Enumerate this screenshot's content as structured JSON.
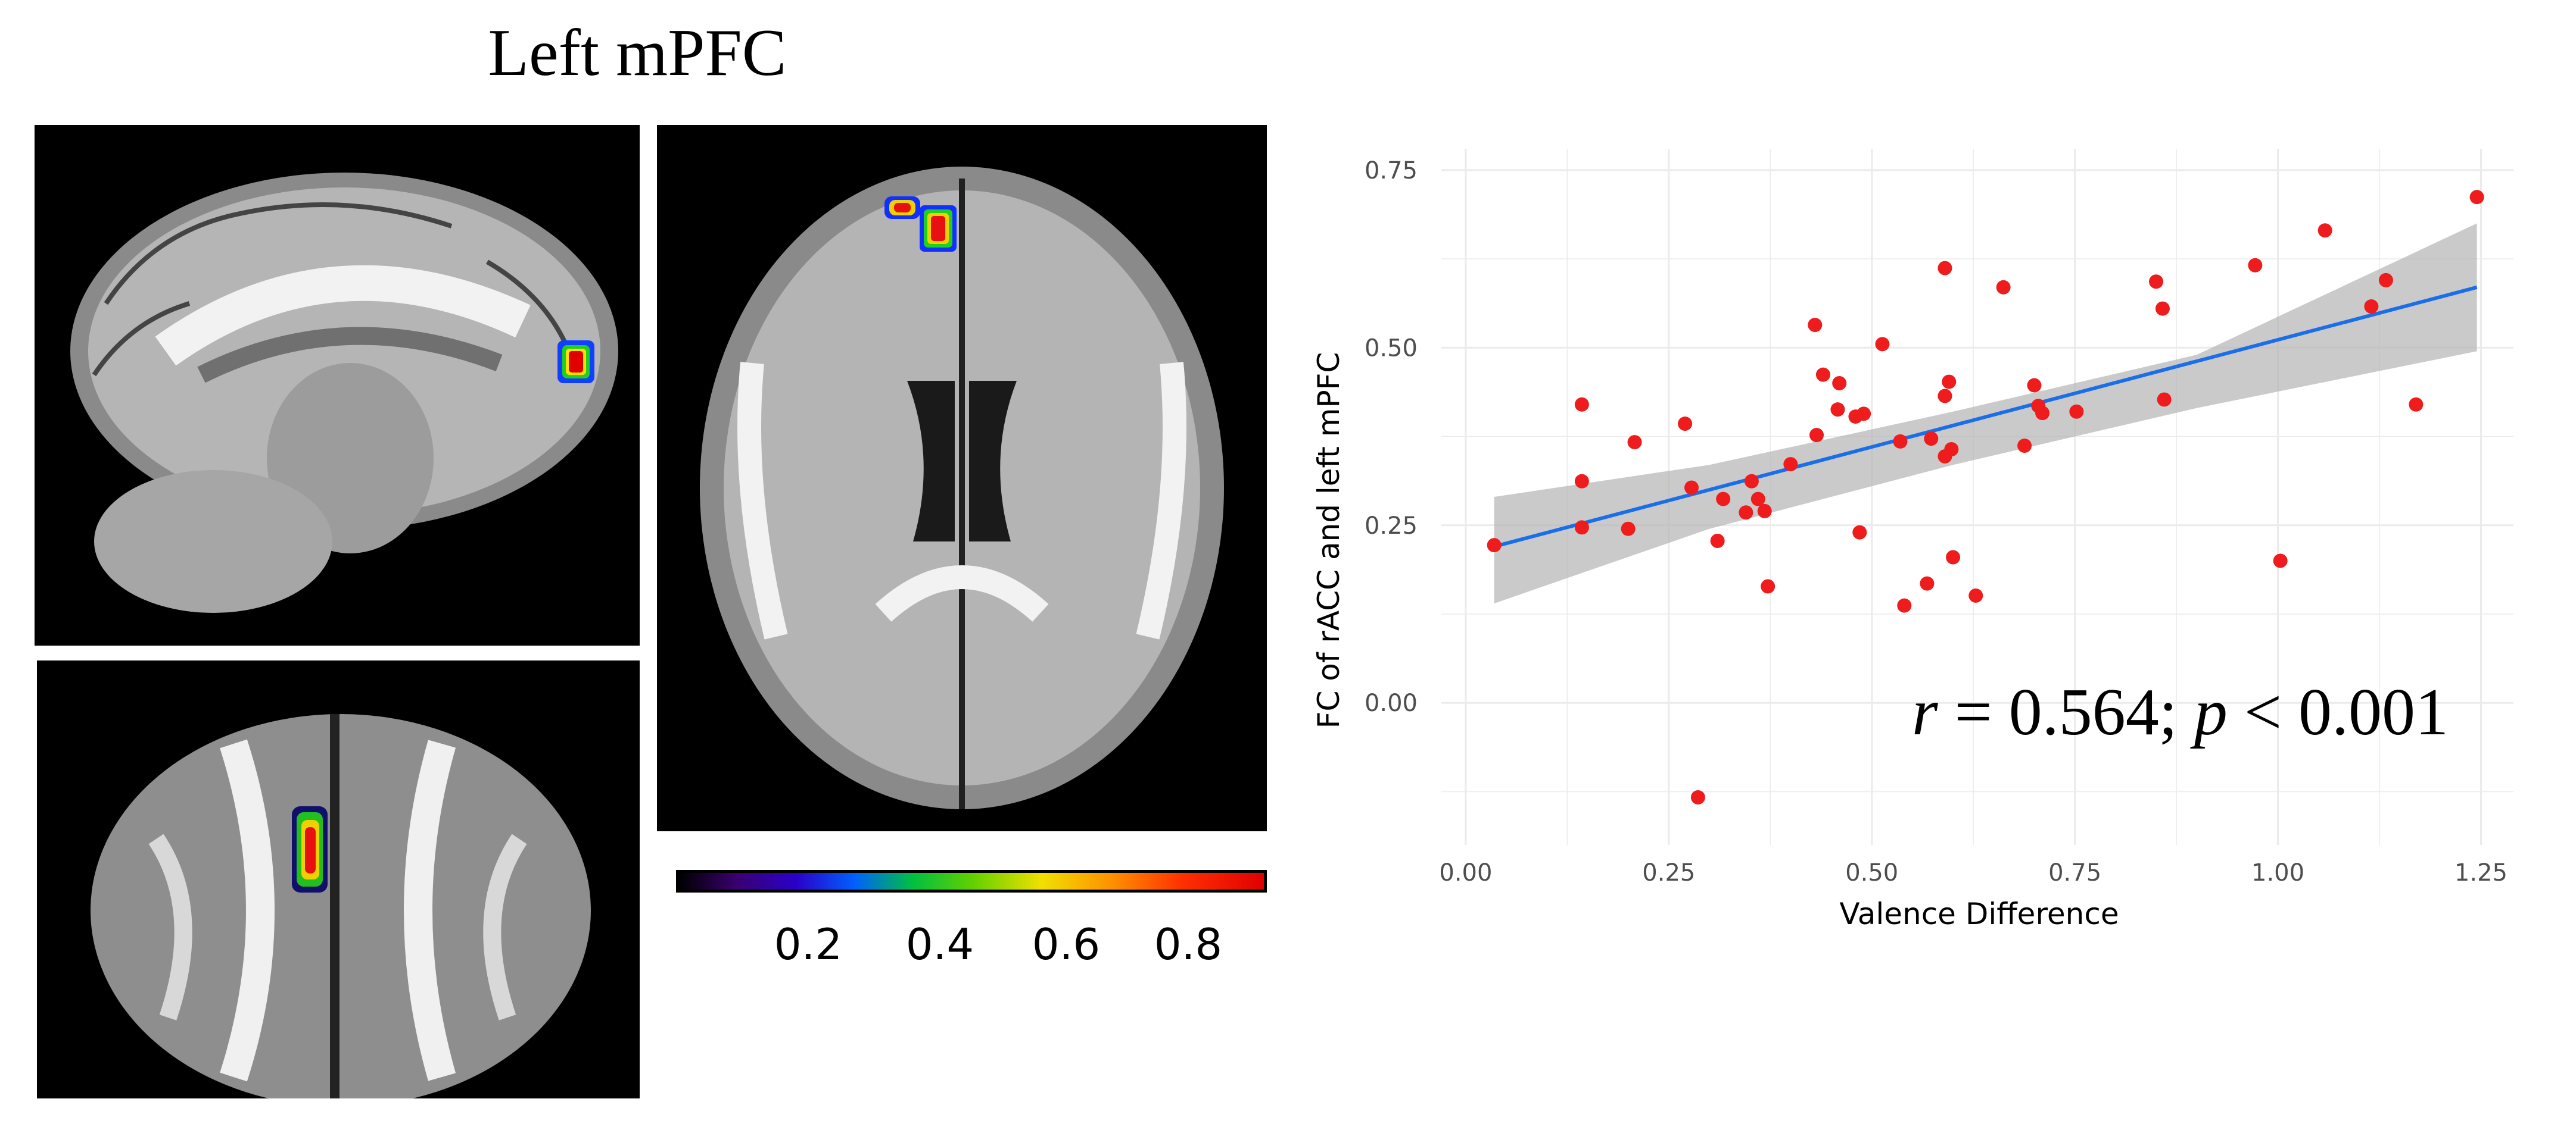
{
  "brain_figure": {
    "title": "Left mPFC",
    "colorbar_ticks": [
      "0.2",
      "0.4",
      "0.6",
      "0.8"
    ]
  },
  "chart_data": {
    "type": "scatter",
    "title": "",
    "xlabel": "Valence Difference",
    "ylabel": "FC of rACC and left mPFC",
    "xlim": [
      -0.03,
      1.29
    ],
    "ylim": [
      -0.2,
      0.78
    ],
    "x_ticks": [
      "0.00",
      "0.25",
      "0.50",
      "0.75",
      "1.00",
      "1.25"
    ],
    "x_tick_values": [
      0,
      0.25,
      0.5,
      0.75,
      1.0,
      1.25
    ],
    "y_ticks": [
      "0.00",
      "0.25",
      "0.50",
      "0.75"
    ],
    "y_tick_values": [
      0,
      0.25,
      0.5,
      0.75
    ],
    "grid": true,
    "point_color": "#ee1c1c",
    "line_color": "#1a6ee8",
    "band_color": "#b4b4b4",
    "annotation": "r = 0.564; p < 0.001",
    "fit_line": {
      "x": [
        0.035,
        1.245
      ],
      "y": [
        0.22,
        0.585
      ]
    },
    "confidence_band": {
      "x": [
        0.035,
        0.3,
        0.6,
        0.9,
        1.245
      ],
      "upper": [
        0.29,
        0.335,
        0.41,
        0.49,
        0.675
      ],
      "lower": [
        0.14,
        0.245,
        0.335,
        0.415,
        0.495
      ]
    },
    "points": [
      {
        "x": 0.035,
        "y": 0.222
      },
      {
        "x": 0.143,
        "y": 0.42
      },
      {
        "x": 0.143,
        "y": 0.312
      },
      {
        "x": 0.143,
        "y": 0.247
      },
      {
        "x": 0.2,
        "y": 0.245
      },
      {
        "x": 0.208,
        "y": 0.367
      },
      {
        "x": 0.27,
        "y": 0.393
      },
      {
        "x": 0.278,
        "y": 0.303
      },
      {
        "x": 0.286,
        "y": -0.133
      },
      {
        "x": 0.31,
        "y": 0.228
      },
      {
        "x": 0.317,
        "y": 0.287
      },
      {
        "x": 0.345,
        "y": 0.268
      },
      {
        "x": 0.352,
        "y": 0.312
      },
      {
        "x": 0.36,
        "y": 0.287
      },
      {
        "x": 0.368,
        "y": 0.27
      },
      {
        "x": 0.372,
        "y": 0.164
      },
      {
        "x": 0.4,
        "y": 0.336
      },
      {
        "x": 0.43,
        "y": 0.532
      },
      {
        "x": 0.432,
        "y": 0.377
      },
      {
        "x": 0.44,
        "y": 0.462
      },
      {
        "x": 0.458,
        "y": 0.413
      },
      {
        "x": 0.46,
        "y": 0.45
      },
      {
        "x": 0.48,
        "y": 0.403
      },
      {
        "x": 0.485,
        "y": 0.24
      },
      {
        "x": 0.49,
        "y": 0.407
      },
      {
        "x": 0.513,
        "y": 0.505
      },
      {
        "x": 0.535,
        "y": 0.368
      },
      {
        "x": 0.54,
        "y": 0.137
      },
      {
        "x": 0.568,
        "y": 0.168
      },
      {
        "x": 0.573,
        "y": 0.372
      },
      {
        "x": 0.59,
        "y": 0.612
      },
      {
        "x": 0.59,
        "y": 0.432
      },
      {
        "x": 0.59,
        "y": 0.347
      },
      {
        "x": 0.595,
        "y": 0.452
      },
      {
        "x": 0.598,
        "y": 0.357
      },
      {
        "x": 0.6,
        "y": 0.205
      },
      {
        "x": 0.628,
        "y": 0.151
      },
      {
        "x": 0.662,
        "y": 0.585
      },
      {
        "x": 0.688,
        "y": 0.362
      },
      {
        "x": 0.7,
        "y": 0.447
      },
      {
        "x": 0.705,
        "y": 0.418
      },
      {
        "x": 0.71,
        "y": 0.408
      },
      {
        "x": 0.752,
        "y": 0.41
      },
      {
        "x": 0.85,
        "y": 0.593
      },
      {
        "x": 0.858,
        "y": 0.555
      },
      {
        "x": 0.86,
        "y": 0.427
      },
      {
        "x": 0.972,
        "y": 0.616
      },
      {
        "x": 1.003,
        "y": 0.2
      },
      {
        "x": 1.058,
        "y": 0.665
      },
      {
        "x": 1.115,
        "y": 0.558
      },
      {
        "x": 1.133,
        "y": 0.595
      },
      {
        "x": 1.17,
        "y": 0.42
      },
      {
        "x": 1.245,
        "y": 0.712
      }
    ]
  }
}
